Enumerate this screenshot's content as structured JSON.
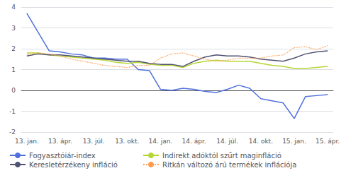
{
  "chart_data": {
    "type": "line",
    "categories": [
      "13. jan.",
      null,
      null,
      "13. ápr.",
      null,
      null,
      "13. júl.",
      null,
      null,
      "13. okt.",
      null,
      null,
      "14. jan.",
      null,
      null,
      "14. ápr.",
      null,
      null,
      "14. júl.",
      null,
      null,
      "14. okt.",
      null,
      null,
      "15. jan.",
      null,
      null,
      "15. ápr."
    ],
    "series": [
      {
        "name": "Fogyasztóiár-index",
        "values": [
          3.7,
          2.8,
          1.9,
          1.85,
          1.75,
          1.7,
          1.55,
          1.55,
          1.5,
          1.5,
          1.0,
          0.95,
          0.05,
          0.0,
          0.1,
          0.05,
          -0.05,
          -0.1,
          0.05,
          0.25,
          0.1,
          -0.4,
          -0.5,
          -0.6,
          -1.35,
          -0.3,
          -0.25,
          -0.2
        ]
      },
      {
        "name": "Indirekt adóktól szűrt maginfláció",
        "values": [
          1.8,
          1.8,
          1.7,
          1.65,
          1.6,
          1.55,
          1.5,
          1.45,
          1.35,
          1.3,
          1.35,
          1.25,
          1.2,
          1.2,
          1.1,
          1.3,
          1.4,
          1.45,
          1.4,
          1.4,
          1.4,
          1.3,
          1.2,
          1.15,
          1.05,
          1.05,
          1.1,
          1.15
        ]
      },
      {
        "name": "Keresletérzékeny infláció",
        "values": [
          1.65,
          1.75,
          1.7,
          1.7,
          1.65,
          1.6,
          1.55,
          1.5,
          1.45,
          1.4,
          1.4,
          1.3,
          1.25,
          1.25,
          1.15,
          1.4,
          1.6,
          1.7,
          1.65,
          1.65,
          1.6,
          1.5,
          1.45,
          1.4,
          1.55,
          1.75,
          1.85,
          1.9
        ]
      },
      {
        "name": "Ritkán változó árú termékek inflációja",
        "line_style": "dotted",
        "values": [
          1.7,
          1.8,
          1.75,
          1.65,
          1.5,
          1.4,
          1.3,
          1.2,
          1.15,
          1.1,
          1.2,
          1.2,
          1.55,
          1.75,
          1.8,
          1.65,
          1.5,
          1.4,
          1.45,
          1.55,
          1.55,
          1.55,
          1.65,
          1.7,
          2.05,
          2.1,
          1.95,
          2.15
        ]
      }
    ],
    "ylim": [
      -2,
      4
    ],
    "yticks": [
      -2,
      -1,
      0,
      1,
      2,
      3,
      4
    ],
    "grid": true,
    "legend": "bottom"
  }
}
